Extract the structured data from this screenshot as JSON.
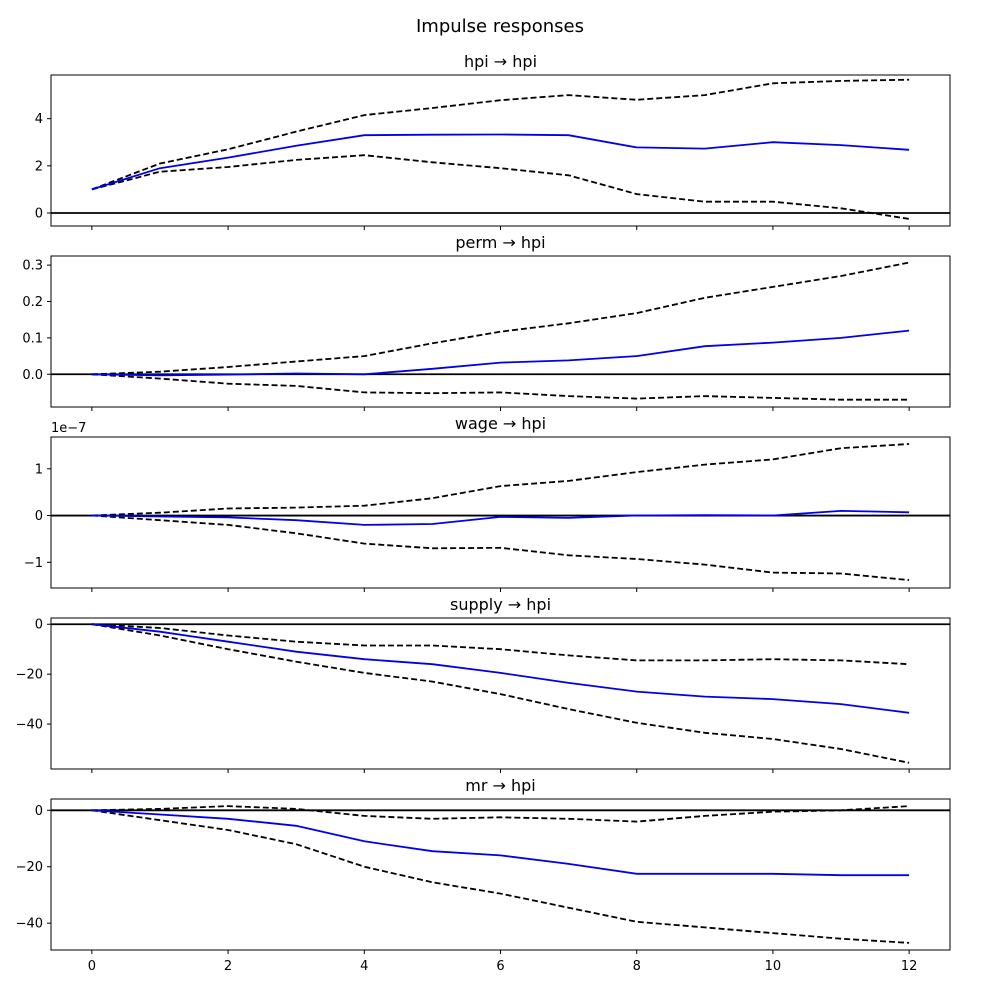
{
  "suptitle": "Impulse responses",
  "chart_data": {
    "type": "line",
    "x": [
      0,
      1,
      2,
      3,
      4,
      5,
      6,
      7,
      8,
      9,
      10,
      11,
      12
    ],
    "x_ticks": [
      0,
      2,
      4,
      6,
      8,
      10,
      12
    ],
    "x_tick_labels": [
      "0",
      "2",
      "4",
      "6",
      "8",
      "10",
      "12"
    ],
    "xlim": [
      -0.6,
      12.6
    ],
    "colors": {
      "response": "#0000ee",
      "bands": "#000000",
      "zero_line": "#000000"
    },
    "panels": [
      {
        "title": "hpi → hpi",
        "ylim": [
          -0.55,
          5.85
        ],
        "y_ticks": [
          0,
          2,
          4
        ],
        "y_tick_labels": [
          "0",
          "2",
          "4"
        ],
        "offset_text": "",
        "response": [
          1.0,
          1.9,
          2.35,
          2.85,
          3.3,
          3.32,
          3.33,
          3.3,
          2.78,
          2.73,
          3.0,
          2.88,
          2.68
        ],
        "upper": [
          1.0,
          2.1,
          2.7,
          3.45,
          4.15,
          4.45,
          4.78,
          5.0,
          4.8,
          5.0,
          5.5,
          5.6,
          5.65
        ],
        "lower": [
          1.0,
          1.75,
          1.95,
          2.25,
          2.45,
          2.15,
          1.9,
          1.6,
          0.8,
          0.48,
          0.48,
          0.2,
          -0.25
        ]
      },
      {
        "title": "perm → hpi",
        "ylim": [
          -0.09,
          0.325
        ],
        "y_ticks": [
          0.0,
          0.1,
          0.2,
          0.3
        ],
        "y_tick_labels": [
          "0.0",
          "0.1",
          "0.2",
          "0.3"
        ],
        "offset_text": "",
        "response": [
          0.0,
          -0.003,
          -0.001,
          0.002,
          0.0,
          0.015,
          0.032,
          0.038,
          0.05,
          0.077,
          0.087,
          0.1,
          0.12
        ],
        "upper": [
          0.0,
          0.007,
          0.02,
          0.035,
          0.05,
          0.085,
          0.117,
          0.14,
          0.168,
          0.21,
          0.24,
          0.27,
          0.307
        ],
        "lower": [
          0.0,
          -0.012,
          -0.026,
          -0.032,
          -0.05,
          -0.052,
          -0.05,
          -0.06,
          -0.067,
          -0.06,
          -0.065,
          -0.07,
          -0.07
        ]
      },
      {
        "title": "wage → hpi",
        "ylim": [
          -1.55e-07,
          1.68e-07
        ],
        "y_ticks": [
          -1e-07,
          0,
          1e-07
        ],
        "y_tick_labels": [
          "−1",
          "0",
          "1"
        ],
        "offset_text": "1e−7",
        "response": [
          0.0,
          -2e-09,
          -4e-09,
          -1e-08,
          -2e-08,
          -1.8e-08,
          -3e-09,
          -5e-09,
          0.0,
          1e-09,
          0.0,
          1e-08,
          7e-09
        ],
        "upper": [
          0.0,
          6e-09,
          1.5e-08,
          1.7e-08,
          2.1e-08,
          3.7e-08,
          6.3e-08,
          7.4e-08,
          9.3e-08,
          1.09e-07,
          1.2e-07,
          1.44e-07,
          1.53e-07
        ],
        "lower": [
          0.0,
          -1e-08,
          -2e-08,
          -3.8e-08,
          -6e-08,
          -7e-08,
          -6.9e-08,
          -8.5e-08,
          -9.3e-08,
          -1.05e-07,
          -1.22e-07,
          -1.24e-07,
          -1.38e-07
        ]
      },
      {
        "title": "supply → hpi",
        "ylim": [
          -58,
          2.5
        ],
        "y_ticks": [
          0,
          -20,
          -40
        ],
        "y_tick_labels": [
          "0",
          "−20",
          "−40"
        ],
        "offset_text": "",
        "response": [
          0.0,
          -3.0,
          -7.0,
          -11.0,
          -14.0,
          -16.0,
          -19.5,
          -23.5,
          -27.0,
          -29.0,
          -30.0,
          -32.0,
          -35.5
        ],
        "upper": [
          0.0,
          -1.5,
          -4.5,
          -7.0,
          -8.5,
          -8.5,
          -10.0,
          -12.5,
          -14.5,
          -14.5,
          -14.0,
          -14.5,
          -16.0
        ],
        "lower": [
          0.0,
          -4.5,
          -10.0,
          -15.0,
          -19.5,
          -23.0,
          -28.0,
          -34.0,
          -39.5,
          -43.5,
          -46.0,
          -50.0,
          -55.5
        ]
      },
      {
        "title": "mr → hpi",
        "ylim": [
          -49.5,
          4.0
        ],
        "y_ticks": [
          0,
          -20,
          -40
        ],
        "y_tick_labels": [
          "0",
          "−20",
          "−40"
        ],
        "offset_text": "",
        "response": [
          0.0,
          -1.5,
          -3.0,
          -5.5,
          -11.0,
          -14.5,
          -16.0,
          -19.0,
          -22.5,
          -22.5,
          -22.5,
          -23.0,
          -23.0
        ],
        "upper": [
          0.0,
          0.5,
          1.5,
          0.5,
          -2.0,
          -3.0,
          -2.5,
          -3.0,
          -4.0,
          -2.0,
          -0.5,
          0.0,
          1.5
        ],
        "lower": [
          0.0,
          -3.5,
          -7.0,
          -12.0,
          -20.0,
          -25.5,
          -29.5,
          -34.5,
          -39.5,
          -41.5,
          -43.5,
          -45.5,
          -47.0
        ]
      }
    ]
  }
}
